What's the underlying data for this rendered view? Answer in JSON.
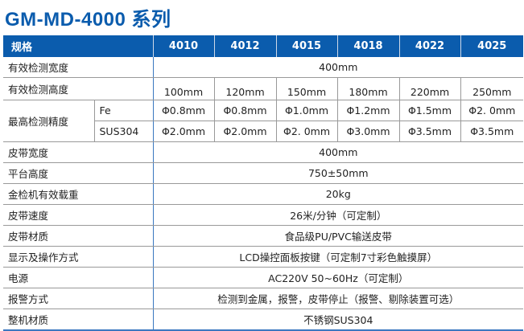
{
  "title": "GM-MD-4000 系列",
  "header": {
    "spec": "规格",
    "models": [
      "4010",
      "4012",
      "4015",
      "4018",
      "4022",
      "4025"
    ]
  },
  "rows": {
    "width": {
      "label": "有效检测宽度",
      "value": "400mm"
    },
    "height": {
      "label": "有效检测高度",
      "values": [
        "100mm",
        "120mm",
        "150mm",
        "180mm",
        "220mm",
        "250mm"
      ]
    },
    "precision": {
      "label": "最高检测精度",
      "fe": {
        "label": "Fe",
        "values": [
          "Φ0.8mm",
          "Φ0.8mm",
          "Φ1.0mm",
          "Φ1.2mm",
          "Φ1.5mm",
          "Φ2. 0mm"
        ]
      },
      "sus": {
        "label": "SUS304",
        "values": [
          "Φ2.0mm",
          "Φ2.0mm",
          "Φ2. 0mm",
          "Φ3.0mm",
          "Φ3.5mm",
          "Φ3.5mm"
        ]
      }
    },
    "single": [
      {
        "label": "皮带宽度",
        "value": "400mm"
      },
      {
        "label": "平台高度",
        "value": "750±50mm"
      },
      {
        "label": "金检机有效载重",
        "value": "20kg"
      },
      {
        "label": "皮带速度",
        "value": "26米/分钟（可定制）"
      },
      {
        "label": "皮带材质",
        "value": "食品级PU/PVC输送皮带"
      },
      {
        "label": "显示及操作方式",
        "value": "LCD操控面板按键（可定制7寸彩色触摸屏）"
      },
      {
        "label": "电源",
        "value": "AC220V 50~60Hz（可定制）"
      },
      {
        "label": "报警方式",
        "value": "检测到金属，报警，皮带停止（报警、剔除装置可选）"
      },
      {
        "label": "整机材质",
        "value": "不锈钢SUS304"
      }
    ]
  },
  "colors": {
    "header_bg": "#0b5cad",
    "title": "#0b5cad"
  }
}
